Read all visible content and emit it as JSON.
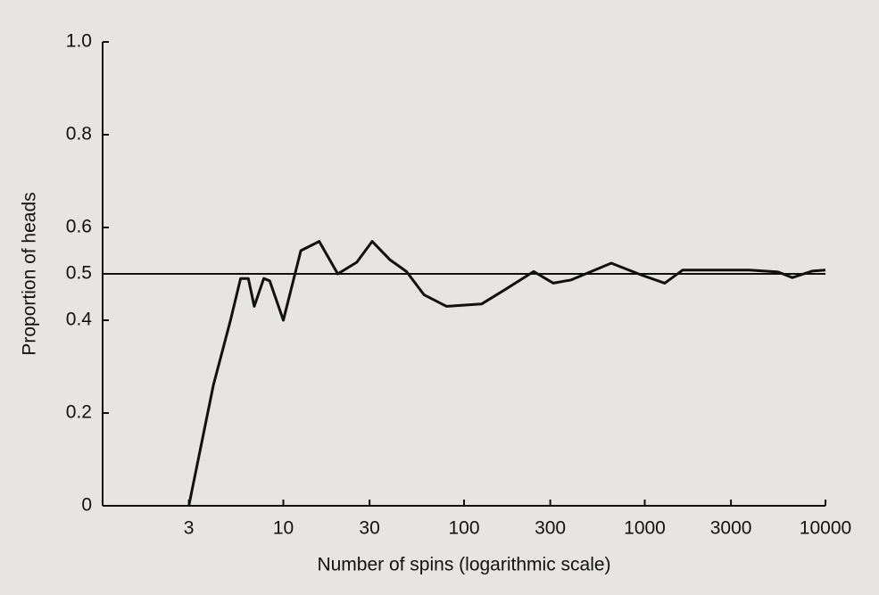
{
  "chart_data": {
    "type": "line",
    "xlabel": "Number of spins (logarithmic scale)",
    "ylabel": "Proportion of heads",
    "x": [
      3,
      4.1,
      5.1,
      5.8,
      6.4,
      6.9,
      7.8,
      8.4,
      10,
      12.5,
      15.8,
      20,
      25.5,
      31,
      39,
      48,
      60,
      80,
      125,
      167,
      243,
      312,
      392,
      653,
      950,
      1290,
      1620,
      3800,
      5470,
      6560,
      8430,
      10000
    ],
    "series": [
      {
        "color": "#111111",
        "values": [
          0,
          0.26,
          0.4,
          0.49,
          0.49,
          0.43,
          0.49,
          0.485,
          0.4,
          0.55,
          0.57,
          0.5,
          0.525,
          0.57,
          0.53,
          0.505,
          0.455,
          0.43,
          0.435,
          0.465,
          0.505,
          0.48,
          0.487,
          0.523,
          0.498,
          0.48,
          0.508,
          0.508,
          0.504,
          0.492,
          0.506,
          0.508
        ]
      }
    ],
    "hline": 0.5,
    "xscale": "log",
    "xlim": [
      1,
      10000
    ],
    "xticks": [
      3,
      10,
      30,
      100,
      300,
      1000,
      3000,
      10000
    ],
    "ylim": [
      0,
      1
    ],
    "yticks": [
      0,
      0.2,
      0.4,
      0.5,
      0.6,
      0.8,
      {
        "value": 1,
        "label": "1.0"
      }
    ]
  }
}
